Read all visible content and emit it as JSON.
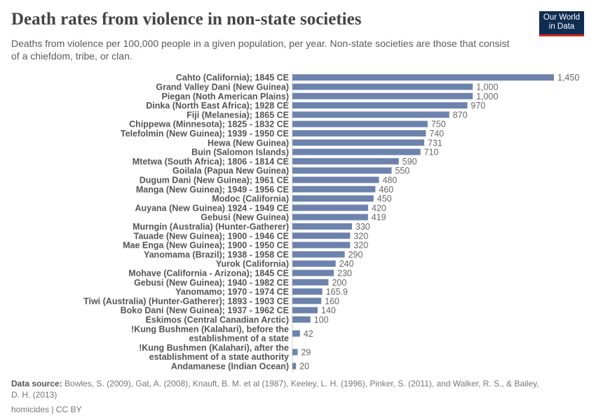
{
  "header": {
    "title": "Death rates from violence in non-state societies",
    "subtitle": "Deaths from violence per 100,000 people in a given population, per year. Non-state societies are those that consist of a chiefdom, tribe, or clan.",
    "logo": "Our World in Data"
  },
  "chart_data": {
    "type": "bar",
    "orientation": "horizontal",
    "bar_color": "#6d83ad",
    "categories": [
      "Cahto (California); 1845 CE",
      "Grand Valley Dani (New Guinea)",
      "Piegan (Noth American Plains)",
      "Dinka (North East Africa); 1928 CE",
      "Fiji (Melanesia); 1865 CE",
      "Chippewa (Minnesota); 1825 - 1832 CE",
      "Telefolmin (New Guinea); 1939 - 1950 CE",
      "Hewa (New Guinea)",
      "Buin (Salomon Islands)",
      "Mtetwa (South Africa); 1806 - 1814 CE",
      "Goilala (Papua New Guinea)",
      "Dugum Dani (New Guinea); 1961 CE",
      "Manga (New Guinea); 1949 - 1956 CE",
      "Modoc (California)",
      "Auyana (New Guinea) 1924 - 1949 CE",
      "Gebusi (New Guinea)",
      "Murngin (Australia) (Hunter-Gatherer)",
      "Tauade (New Guinea); 1900 - 1946 CE",
      "Mae Enga (New Guinea); 1900 - 1950 CE",
      "Yanomama (Brazil); 1938 - 1958 CE",
      "Yurok (California)",
      "Mohave (California - Arizona); 1845 CE",
      "Gebusi (New Guinea); 1940 - 1982 CE",
      "Yanomamo; 1970 - 1974 CE",
      "Tiwi (Australia) (Hunter-Gatherer); 1893 - 1903 CE",
      "Boko Dani (New Guinea); 1937 - 1962 CE",
      "Eskimos (Central Canadian Arctic)",
      "!Kung Bushmen (Kalahari), before the establishment of a state",
      "!Kung Bushmen (Kalahari), after the establishment of a state authority",
      "Andamanese (Indian Ocean)"
    ],
    "values": [
      1450,
      1000,
      1000,
      970,
      870,
      750,
      740,
      731,
      710,
      590,
      550,
      480,
      460,
      450,
      420,
      419,
      330,
      320,
      320,
      290,
      240,
      230,
      200,
      165.9,
      160,
      140,
      100,
      42,
      29,
      20
    ],
    "value_labels": [
      "1,450",
      "1,000",
      "1,000",
      "970",
      "870",
      "750",
      "740",
      "731",
      "710",
      "590",
      "550",
      "480",
      "460",
      "450",
      "420",
      "419",
      "330",
      "320",
      "320",
      "290",
      "240",
      "230",
      "200",
      "165.9",
      "160",
      "140",
      "100",
      "42",
      "29",
      "20"
    ]
  },
  "footer": {
    "source_label": "Data source:",
    "source": "Bowles, S. (2009), Gat, A. (2008), Knauft, B. M. et al (1987), Keeley, L. H. (1996), Pinker, S. (2011), and Walker, R. S., & Bailey, D. H. (2013)",
    "license": "homicides | CC BY"
  }
}
